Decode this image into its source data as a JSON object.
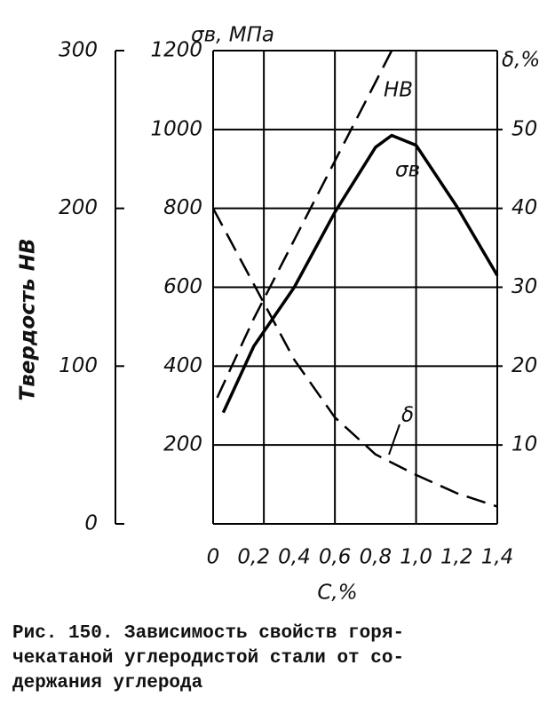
{
  "chart_data": {
    "type": "line",
    "x_label": "C,%",
    "y_label": "σв, МПа",
    "y2_label": "δ,%",
    "y3_label": "Твердость НВ",
    "xlim": [
      0,
      1.4
    ],
    "xticks": [
      0,
      {
        "value": 0.2,
        "label": "0,2"
      },
      {
        "value": 0.4,
        "label": "0,4"
      },
      {
        "value": 0.6,
        "label": "0,6"
      },
      {
        "value": 0.8,
        "label": "0,8"
      },
      {
        "value": 1.0,
        "label": "1,0"
      },
      {
        "value": 1.2,
        "label": "1,2"
      },
      {
        "value": 1.4,
        "label": "1,4"
      }
    ],
    "xgrid": [
      0,
      0.25,
      0.6,
      1.0,
      1.4
    ],
    "ylim": [
      0,
      1200
    ],
    "yticks": [
      200,
      400,
      600,
      800,
      1000,
      1200
    ],
    "y2lim": [
      0,
      60
    ],
    "y2ticks": [
      10,
      20,
      30,
      40,
      50
    ],
    "y3lim": [
      0,
      300
    ],
    "y3ticks": [
      0,
      100,
      200,
      300
    ],
    "grid": true,
    "series": [
      {
        "name": "σв",
        "color": "#000000",
        "dash": false,
        "x": [
          0.05,
          0.2,
          0.4,
          0.6,
          0.8,
          0.88,
          1.0,
          1.2,
          1.4
        ],
        "values": [
          282,
          450,
          600,
          790,
          955,
          985,
          960,
          805,
          630
        ]
      },
      {
        "name": "НВ",
        "color": "#000000",
        "dash": true,
        "axis": "y3",
        "x": [
          0.02,
          0.2,
          0.4,
          0.6,
          0.8,
          0.88
        ],
        "values": [
          80,
          130,
          180,
          230,
          280,
          300
        ]
      },
      {
        "name": "δ",
        "color": "#000000",
        "dash": true,
        "axis": "y2",
        "x": [
          0,
          0.2,
          0.4,
          0.6,
          0.8,
          1.0,
          1.2,
          1.4
        ],
        "values": [
          40,
          30.4,
          20.8,
          13.5,
          8.8,
          6.2,
          3.9,
          2.2
        ]
      }
    ],
    "caption": [
      "Рис. 150. Зависимость свойств горя-",
      "чекатаной углеродистой стали от со-",
      "держания углерода"
    ]
  }
}
